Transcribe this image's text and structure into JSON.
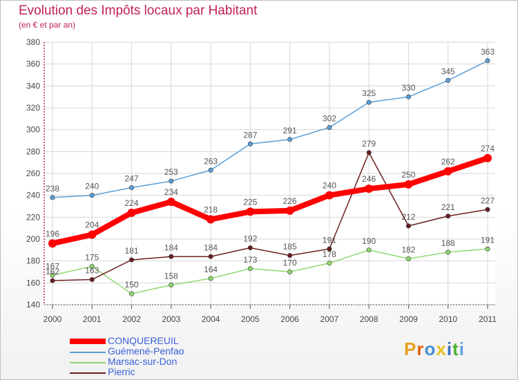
{
  "header": {
    "title": "Evolution des Impôts locaux par Habitant",
    "subtitle": "(en € et par an)"
  },
  "logo": {
    "text": "Proxiti",
    "colors": [
      "#e8a020",
      "#e06010",
      "#4a8fd0",
      "#e8c020",
      "#3a6fc0",
      "#50b030",
      "#60a0e0"
    ]
  },
  "chart_data": {
    "type": "line",
    "x": [
      "2000",
      "2001",
      "2002",
      "2003",
      "2004",
      "2005",
      "2006",
      "2007",
      "2008",
      "2009",
      "2010",
      "2011"
    ],
    "ylim": [
      140,
      380
    ],
    "yticks": [
      140,
      160,
      180,
      200,
      220,
      240,
      260,
      280,
      300,
      320,
      340,
      360,
      380
    ],
    "grid": true,
    "legend_position": "bottom-left",
    "series": [
      {
        "name": "CONQUEREUIL",
        "color": "#ff0000",
        "values": [
          196,
          204,
          224,
          234,
          218,
          225,
          226,
          240,
          246,
          250,
          262,
          274
        ]
      },
      {
        "name": "Guémené-Penfao",
        "color": "#5a9fd8",
        "values": [
          238,
          240,
          247,
          253,
          263,
          287,
          291,
          302,
          325,
          330,
          345,
          363
        ]
      },
      {
        "name": "Marsac-sur-Don",
        "color": "#90d870",
        "values": [
          167,
          175,
          150,
          158,
          164,
          173,
          170,
          178,
          190,
          182,
          188,
          191
        ]
      },
      {
        "name": "Pierric",
        "color": "#6b1e1e",
        "values": [
          162,
          163,
          181,
          184,
          184,
          192,
          185,
          191,
          279,
          212,
          221,
          227
        ]
      }
    ]
  }
}
